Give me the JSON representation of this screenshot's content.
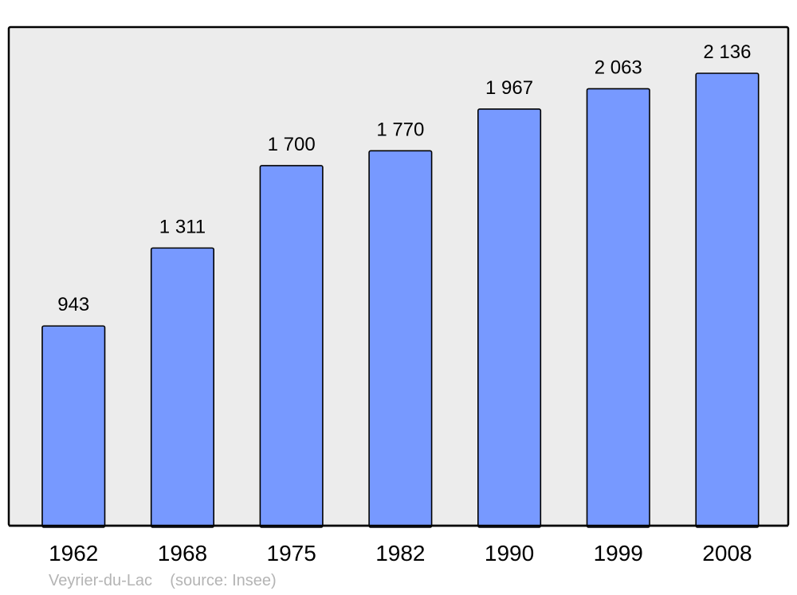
{
  "chart_data": {
    "type": "bar",
    "categories": [
      "1962",
      "1968",
      "1975",
      "1982",
      "1990",
      "1999",
      "2008"
    ],
    "values": [
      943,
      1311,
      1700,
      1770,
      1967,
      2063,
      2136
    ],
    "data_labels": [
      "943",
      "1 311",
      "1 700",
      "1 770",
      "1 967",
      "2 063",
      "2 136"
    ],
    "title": "",
    "xlabel": "",
    "ylabel": "",
    "ylim": [
      0,
      2136
    ],
    "grid": false,
    "colors": {
      "bar": "#7799ff",
      "background": "#ececec",
      "frame": "#000000"
    }
  },
  "footer": {
    "place": "Veyrier-du-Lac",
    "source": "(source: Insee)"
  }
}
